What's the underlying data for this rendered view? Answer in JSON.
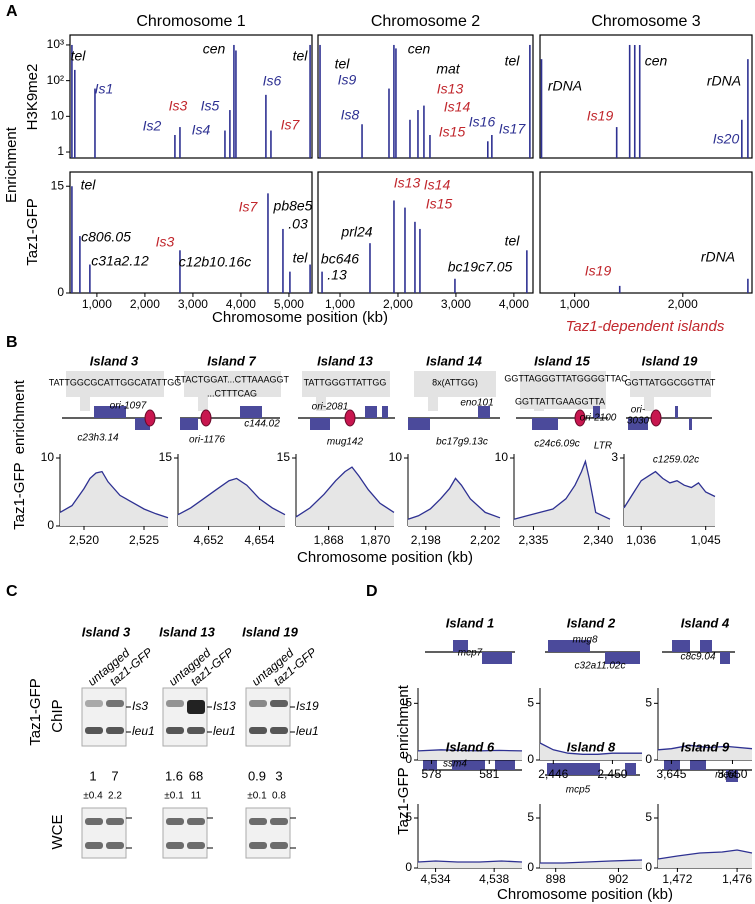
{
  "panel_labels": [
    "A",
    "B",
    "C",
    "D"
  ],
  "panel_a": {
    "y_label": "Enrichment",
    "row_labels": [
      "H3K9me2",
      "Taz1-GFP"
    ],
    "x_label": "Chromosome position (kb)",
    "note": "Taz1-dependent islands"
  },
  "chart_data": [
    {
      "type": "stem",
      "title": "Chromosome 1",
      "color": "#2e3192",
      "log": true,
      "x": [
        480,
        540,
        960,
        2625,
        2730,
        3667,
        3770,
        3854,
        3896,
        4520,
        4625,
        5440
      ],
      "values": [
        1000,
        200,
        60,
        3,
        5,
        4,
        15,
        1000,
        700,
        40,
        4,
        1000
      ],
      "xlim": [
        440,
        5480
      ],
      "ylim": [
        0.68,
        1900
      ],
      "yticks": [
        1,
        10,
        {
          "value": 100,
          "label": "10²"
        },
        {
          "value": 1000,
          "label": "10³"
        }
      ],
      "annotations": [
        {
          "text": "tel",
          "color": "#000000"
        },
        {
          "text": "Is1",
          "color": "#2e3192"
        },
        {
          "text": "Is2",
          "color": "#2e3192"
        },
        {
          "text": "Is3",
          "color": "#c1272d"
        },
        {
          "text": "Is4",
          "color": "#2e3192"
        },
        {
          "text": "Is5",
          "color": "#2e3192"
        },
        {
          "text": "cen",
          "color": "#000000"
        },
        {
          "text": "Is6",
          "color": "#2e3192"
        },
        {
          "text": "Is7",
          "color": "#c1272d"
        },
        {
          "text": "tel",
          "color": "#000000"
        }
      ]
    },
    {
      "type": "stem",
      "title": "Chromosome 2",
      "color": "#2e3192",
      "log": true,
      "x": [
        655,
        1380,
        1845,
        1930,
        1965,
        2207,
        2345,
        2448,
        2552,
        3550,
        3620,
        4276
      ],
      "values": [
        1000,
        6,
        60,
        1000,
        800,
        8,
        15,
        20,
        3,
        2,
        3,
        1000
      ],
      "xlim": [
        620,
        4330
      ],
      "ylim": [
        0.68,
        1900
      ],
      "annotations": [
        {
          "text": "tel",
          "color": "#000000"
        },
        {
          "text": "Is9",
          "color": "#2e3192"
        },
        {
          "text": "cen",
          "color": "#000000"
        },
        {
          "text": "mat",
          "color": "#000000"
        },
        {
          "text": "Is8",
          "color": "#2e3192"
        },
        {
          "text": "Is13",
          "color": "#c1272d"
        },
        {
          "text": "Is14",
          "color": "#c1272d"
        },
        {
          "text": "Is15",
          "color": "#c1272d"
        },
        {
          "text": "Is16",
          "color": "#2e3192"
        },
        {
          "text": "Is17",
          "color": "#2e3192"
        },
        {
          "text": "tel",
          "color": "#000000"
        }
      ]
    },
    {
      "type": "stem",
      "title": "Chromosome 3",
      "color": "#2e3192",
      "log": true,
      "x": [
        694,
        1389,
        1509,
        1556,
        1602,
        2546,
        2602
      ],
      "values": [
        400,
        5,
        1000,
        1000,
        1000,
        8,
        400
      ],
      "xlim": [
        680,
        2640
      ],
      "ylim": [
        0.68,
        1900
      ],
      "annotations": [
        {
          "text": "rDNA",
          "color": "#000000"
        },
        {
          "text": "cen",
          "color": "#000000"
        },
        {
          "text": "rDNA",
          "color": "#000000"
        },
        {
          "text": "Is19",
          "color": "#c1272d"
        },
        {
          "text": "Is20",
          "color": "#2e3192"
        }
      ]
    },
    {
      "type": "stem",
      "color": "#2e3192",
      "x": [
        480,
        646,
        854,
        2730,
        4563,
        4875,
        5020,
        5440
      ],
      "values": [
        15,
        8,
        4,
        6,
        14,
        9,
        3,
        4
      ],
      "xlim": [
        440,
        5480
      ],
      "ylim": [
        0,
        17
      ],
      "yticks": [
        0,
        15
      ],
      "xticks": [
        {
          "value": 1000,
          "label": "1,000"
        },
        {
          "value": 2000,
          "label": "2,000"
        },
        {
          "value": 3000,
          "label": "3,000"
        },
        {
          "value": 4000,
          "label": "4,000"
        },
        {
          "value": 5000,
          "label": "5,000"
        }
      ],
      "annotations": [
        {
          "text": "tel",
          "color": "#000000"
        },
        {
          "text": "c806.05",
          "color": "#000000"
        },
        {
          "text": "c31a2.12",
          "color": "#000000"
        },
        {
          "text": "Is3",
          "color": "#c1272d"
        },
        {
          "text": "Is7",
          "color": "#c1272d"
        },
        {
          "text": "pb8e5",
          "color": "#000000"
        },
        {
          "text": ".03",
          "color": "#000000"
        },
        {
          "text": "c12b10.16c",
          "color": "#000000"
        },
        {
          "text": "tel",
          "color": "#000000"
        }
      ]
    },
    {
      "type": "stem",
      "color": "#2e3192",
      "x": [
        690,
        1517,
        1931,
        2121,
        2293,
        2379,
        2983,
        4224
      ],
      "values": [
        3,
        7,
        13,
        12,
        10,
        9,
        2,
        6
      ],
      "xlim": [
        620,
        4330
      ],
      "ylim": [
        0,
        17
      ],
      "xticks": [
        {
          "value": 1000,
          "label": "1,000"
        },
        {
          "value": 2000,
          "label": "2,000"
        },
        {
          "value": 3000,
          "label": "3,000"
        },
        {
          "value": 4000,
          "label": "4,000"
        }
      ],
      "annotations": [
        {
          "text": "bc646",
          "color": "#000000"
        },
        {
          "text": ".13",
          "color": "#000000"
        },
        {
          "text": "prl24",
          "color": "#000000"
        },
        {
          "text": "Is13",
          "color": "#c1272d"
        },
        {
          "text": "Is14",
          "color": "#c1272d"
        },
        {
          "text": "Is15",
          "color": "#c1272d"
        },
        {
          "text": "bc19c7.05",
          "color": "#000000"
        },
        {
          "text": "tel",
          "color": "#000000"
        }
      ]
    },
    {
      "type": "stem",
      "color": "#2e3192",
      "x": [
        1417,
        2602
      ],
      "values": [
        1,
        2
      ],
      "xlim": [
        680,
        2640
      ],
      "ylim": [
        0,
        17
      ],
      "xticks": [
        {
          "value": 1000,
          "label": "1,000"
        },
        {
          "value": 2000,
          "label": "2,000"
        }
      ],
      "annotations": [
        {
          "text": "Is19",
          "color": "#c1272d"
        },
        {
          "text": "rDNA",
          "color": "#000000"
        }
      ]
    },
    {
      "type": "area",
      "title": "Island 3",
      "color": "#2e3192",
      "x": [
        2518,
        2519,
        2520,
        2520.5,
        2521,
        2521.5,
        2522,
        2523,
        2524,
        2525,
        2526,
        2527
      ],
      "values": [
        2,
        3,
        5.5,
        7,
        7.8,
        8,
        6.5,
        4.5,
        3.5,
        2.5,
        1.8,
        1.2
      ],
      "xlim": [
        2518,
        2527
      ],
      "ylim": [
        0,
        10
      ],
      "yticks": [
        0,
        10
      ],
      "xticks": [
        {
          "value": 2520,
          "label": "2,520"
        },
        {
          "value": 2525,
          "label": "2,525"
        }
      ],
      "annotations": [
        "TATTGGCGCATTGGCATATTGG",
        "ori-1097",
        "c23h3.14"
      ]
    },
    {
      "type": "area",
      "title": "Island 7",
      "color": "#2e3192",
      "x": [
        4650.8,
        4651.3,
        4651.8,
        4652.3,
        4652.8,
        4653.1,
        4653.5,
        4654,
        4654.5,
        4655
      ],
      "values": [
        2.5,
        4,
        6,
        8,
        10,
        10.5,
        9,
        6,
        4,
        2.5
      ],
      "xlim": [
        4650.8,
        4655
      ],
      "ylim": [
        0,
        15
      ],
      "yticks": [
        15
      ],
      "xticks": [
        {
          "value": 4652,
          "label": "4,652"
        },
        {
          "value": 4654,
          "label": "4,654"
        }
      ],
      "annotations": [
        "TTACTGGAT...CTTAAAGGT",
        "...CTTTCAG",
        "ori-1176",
        "c144.02"
      ]
    },
    {
      "type": "area",
      "title": "Island 13",
      "color": "#2e3192",
      "x": [
        1866.6,
        1867.2,
        1867.8,
        1868.3,
        1868.7,
        1869,
        1869.3,
        1869.7,
        1870.2,
        1870.8
      ],
      "values": [
        2,
        4,
        7,
        10,
        12,
        13,
        11,
        8,
        5,
        3
      ],
      "xlim": [
        1866.6,
        1870.8
      ],
      "ylim": [
        0,
        15
      ],
      "yticks": [
        15
      ],
      "xticks": [
        {
          "value": 1868,
          "label": "1,868"
        },
        {
          "value": 1870,
          "label": "1,870"
        }
      ],
      "annotations": [
        "TATTGGGTTATTGG",
        "ori-2081",
        "mug142"
      ]
    },
    {
      "type": "area",
      "title": "Island 14",
      "color": "#2e3192",
      "x": [
        2196.8,
        2197.5,
        2198.3,
        2199,
        2199.6,
        2200,
        2200.4,
        2201,
        2202,
        2203
      ],
      "values": [
        1,
        1.5,
        2.5,
        4,
        5.5,
        7,
        6,
        4,
        2,
        1.2
      ],
      "xlim": [
        2196.8,
        2203
      ],
      "ylim": [
        0,
        10
      ],
      "yticks": [
        10
      ],
      "xticks": [
        {
          "value": 2198,
          "label": "2,198"
        },
        {
          "value": 2202,
          "label": "2,202"
        }
      ],
      "annotations": [
        "8x(ATTGG)",
        "eno101",
        "bc17g9.13c"
      ]
    },
    {
      "type": "area",
      "title": "Island 15",
      "color": "#2e3192",
      "x": [
        2333.5,
        2334.5,
        2335.5,
        2336.5,
        2337.5,
        2338.2,
        2338.7,
        2339,
        2339.3,
        2339.8,
        2340.9
      ],
      "values": [
        1,
        1.5,
        2,
        2.5,
        4,
        6,
        8,
        9.5,
        7,
        2,
        1
      ],
      "xlim": [
        2333.5,
        2340.9
      ],
      "ylim": [
        0,
        10
      ],
      "yticks": [
        10
      ],
      "xticks": [
        {
          "value": 2335,
          "label": "2,335"
        },
        {
          "value": 2340,
          "label": "2,340"
        }
      ],
      "annotations": [
        "GGTTAGGGTTATGGGGTTAC",
        "GGTTATTGAAGGTTA",
        "ori-2100",
        "c24c6.09c",
        "LTR"
      ]
    },
    {
      "type": "area",
      "title": "Island 19",
      "color": "#2e3192",
      "x": [
        1033.6,
        1035,
        1036,
        1037,
        1038,
        1039,
        1040,
        1041,
        1042,
        1043,
        1044,
        1045,
        1046.3
      ],
      "values": [
        0.8,
        1.5,
        2,
        2.2,
        2.4,
        2.1,
        1.9,
        2,
        1.8,
        1.7,
        1.9,
        1.5,
        1.3
      ],
      "xlim": [
        1033.6,
        1046.3
      ],
      "ylim": [
        0,
        3
      ],
      "yticks": [
        3
      ],
      "xticks": [
        {
          "value": 1036,
          "label": "1,036"
        },
        {
          "value": 1045,
          "label": "1,045"
        }
      ],
      "annotations": [
        "GGTTATGGCGGTTAT",
        "ori-",
        "3030",
        "c1259.02c"
      ]
    },
    {
      "type": "area",
      "title": "Island 1",
      "color": "#2e3192",
      "x": [
        577.3,
        578.5,
        579.5,
        580.5,
        581.5,
        582.7
      ],
      "values": [
        0.8,
        0.9,
        0.85,
        0.8,
        0.85,
        0.8
      ],
      "xlim": [
        577.3,
        582.7
      ],
      "ylim": [
        0,
        6
      ],
      "yticks": [
        0,
        5
      ],
      "xticks": [
        578,
        581
      ],
      "annotations": [
        "mcp7"
      ]
    },
    {
      "type": "area",
      "title": "Island 2",
      "color": "#2e3192",
      "x": [
        2445.1,
        2446,
        2447,
        2448,
        2449,
        2450,
        2452
      ],
      "values": [
        1.5,
        0.9,
        0.6,
        0.5,
        0.5,
        0.6,
        0.6
      ],
      "xlim": [
        2445.1,
        2452
      ],
      "ylim": [
        0,
        6
      ],
      "yticks": [
        0,
        5
      ],
      "xticks": [
        {
          "value": 2446,
          "label": "2,446"
        },
        {
          "value": 2450,
          "label": "2,450"
        }
      ],
      "annotations": [
        "mug8",
        "c32a11.02c"
      ]
    },
    {
      "type": "area",
      "title": "Island 4",
      "color": "#2e3192",
      "x": [
        3643.9,
        3645,
        3646.5,
        3648,
        3649.5,
        3651.6
      ],
      "values": [
        0.9,
        1,
        1.3,
        1.1,
        1.2,
        1
      ],
      "xlim": [
        3643.9,
        3651.6
      ],
      "ylim": [
        0,
        6
      ],
      "yticks": [
        0,
        5
      ],
      "xticks": [
        {
          "value": 3645,
          "label": "3,645"
        },
        {
          "value": 3650,
          "label": "3,650"
        }
      ],
      "annotations": [
        "c8c9.04"
      ]
    },
    {
      "type": "area",
      "title": "Island 6",
      "color": "#2e3192",
      "x": [
        4532.8,
        4534,
        4535.5,
        4537,
        4538.5,
        4539.9
      ],
      "values": [
        0.6,
        0.7,
        0.6,
        0.6,
        0.7,
        0.6
      ],
      "xlim": [
        4532.8,
        4539.9
      ],
      "ylim": [
        0,
        6
      ],
      "yticks": [
        0,
        5
      ],
      "xticks": [
        {
          "value": 4534,
          "label": "4,534"
        },
        {
          "value": 4538,
          "label": "4,538"
        }
      ],
      "annotations": [
        "ssm4"
      ]
    },
    {
      "type": "area",
      "title": "Island 8",
      "color": "#2e3192",
      "x": [
        897,
        898.5,
        900,
        901.5,
        903.5
      ],
      "values": [
        0.5,
        0.5,
        0.6,
        0.7,
        0.8
      ],
      "xlim": [
        897,
        903.5
      ],
      "ylim": [
        0,
        6
      ],
      "yticks": [
        0,
        5
      ],
      "xticks": [
        898,
        902
      ],
      "annotations": [
        "mcp5"
      ]
    },
    {
      "type": "area",
      "title": "Island 9",
      "color": "#2e3192",
      "x": [
        1470.7,
        1472,
        1473.5,
        1475,
        1476,
        1477
      ],
      "values": [
        0.9,
        1.2,
        1.5,
        1.6,
        1.8,
        1.5
      ],
      "xlim": [
        1470.7,
        1477
      ],
      "ylim": [
        0,
        6
      ],
      "yticks": [
        0,
        5
      ],
      "xticks": [
        {
          "value": 1472,
          "label": "1,472"
        },
        {
          "value": 1476,
          "label": "1,476"
        }
      ],
      "annotations": [
        "mei4"
      ]
    }
  ],
  "panel_b": {
    "y_label": "Taz1-GFP  enrichment",
    "x_label": "Chromosome position (kb)"
  },
  "panel_c": {
    "row_labels": [
      "Taz1-GFP",
      "ChIP",
      "WCE"
    ],
    "gels": [
      {
        "title": "Island 3",
        "lanes": [
          "untagged",
          "taz1-GFP"
        ],
        "bands": [
          "Is3",
          "leu1"
        ],
        "ratios": [
          1,
          7
        ],
        "errors": [
          "±0.4",
          2.2
        ]
      },
      {
        "title": "Island 13",
        "lanes": [
          "untagged",
          "taz1-GFP"
        ],
        "bands": [
          "Is13",
          "leu1"
        ],
        "ratios": [
          1.6,
          68
        ],
        "errors": [
          "±0.1",
          11
        ]
      },
      {
        "title": "Island 19",
        "lanes": [
          "untagged",
          "taz1-GFP"
        ],
        "bands": [
          "Is19",
          "leu1"
        ],
        "ratios": [
          0.9,
          3
        ],
        "errors": [
          "±0.1",
          0.8
        ]
      }
    ]
  },
  "panel_d": {
    "y_label": "Taz1-GFP  enrichment",
    "x_label": "Chromosome position (kb)"
  }
}
